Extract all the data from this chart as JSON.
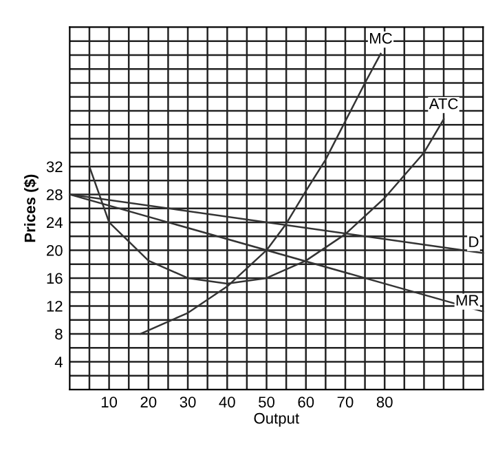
{
  "chart_data": {
    "type": "line",
    "xlabel": "Output",
    "ylabel": "Prices ($)",
    "xlim": [
      0,
      105
    ],
    "ylim": [
      0,
      52
    ],
    "xticks": [
      {
        "value": 5,
        "label": null
      },
      10,
      {
        "value": 15,
        "label": null
      },
      20,
      {
        "value": 25,
        "label": null
      },
      30,
      {
        "value": 35,
        "label": null
      },
      40,
      {
        "value": 45,
        "label": null
      },
      50,
      {
        "value": 55,
        "label": null
      },
      60,
      {
        "value": 65,
        "label": null
      },
      70,
      {
        "value": 75,
        "label": null
      },
      80,
      {
        "value": 85,
        "label": null
      },
      {
        "value": 90,
        "label": null
      },
      {
        "value": 95,
        "label": null
      },
      {
        "value": 100,
        "label": null
      }
    ],
    "yticks": [
      {
        "value": 2,
        "label": null
      },
      4,
      {
        "value": 6,
        "label": null
      },
      8,
      {
        "value": 10,
        "label": null
      },
      12,
      {
        "value": 14,
        "label": null
      },
      16,
      {
        "value": 18,
        "label": null
      },
      20,
      {
        "value": 22,
        "label": null
      },
      24,
      {
        "value": 26,
        "label": null
      },
      28,
      {
        "value": 30,
        "label": null
      },
      32,
      {
        "value": 34,
        "label": null
      },
      {
        "value": 36,
        "label": null
      },
      {
        "value": 38,
        "label": null
      },
      {
        "value": 40,
        "label": null
      },
      {
        "value": 42,
        "label": null
      },
      {
        "value": 44,
        "label": null
      },
      {
        "value": 46,
        "label": null
      },
      {
        "value": 48,
        "label": null
      },
      {
        "value": 50,
        "label": null
      }
    ],
    "grid": true,
    "legend": false,
    "marker": "none",
    "line_style": "solid",
    "series": [
      {
        "name": "MC",
        "color": "#333333",
        "x": [
          18,
          30,
          40,
          50,
          55,
          60,
          65,
          70,
          75,
          79
        ],
        "values": [
          8,
          11,
          14.8,
          20,
          23.8,
          28.5,
          33,
          38.5,
          44,
          48.2
        ]
      },
      {
        "name": "ATC",
        "color": "#333333",
        "x": [
          5,
          10,
          20,
          30,
          40,
          50,
          60,
          70,
          80,
          90,
          95
        ],
        "values": [
          32,
          24,
          18.5,
          16,
          15.2,
          16,
          18.5,
          22.3,
          27.5,
          34,
          38.8
        ]
      },
      {
        "name": "D",
        "color": "#333333",
        "x": [
          0,
          105
        ],
        "values": [
          28,
          19.6
        ]
      },
      {
        "name": "MR",
        "color": "#333333",
        "x": [
          0,
          105
        ],
        "values": [
          28,
          11.2
        ]
      }
    ]
  }
}
